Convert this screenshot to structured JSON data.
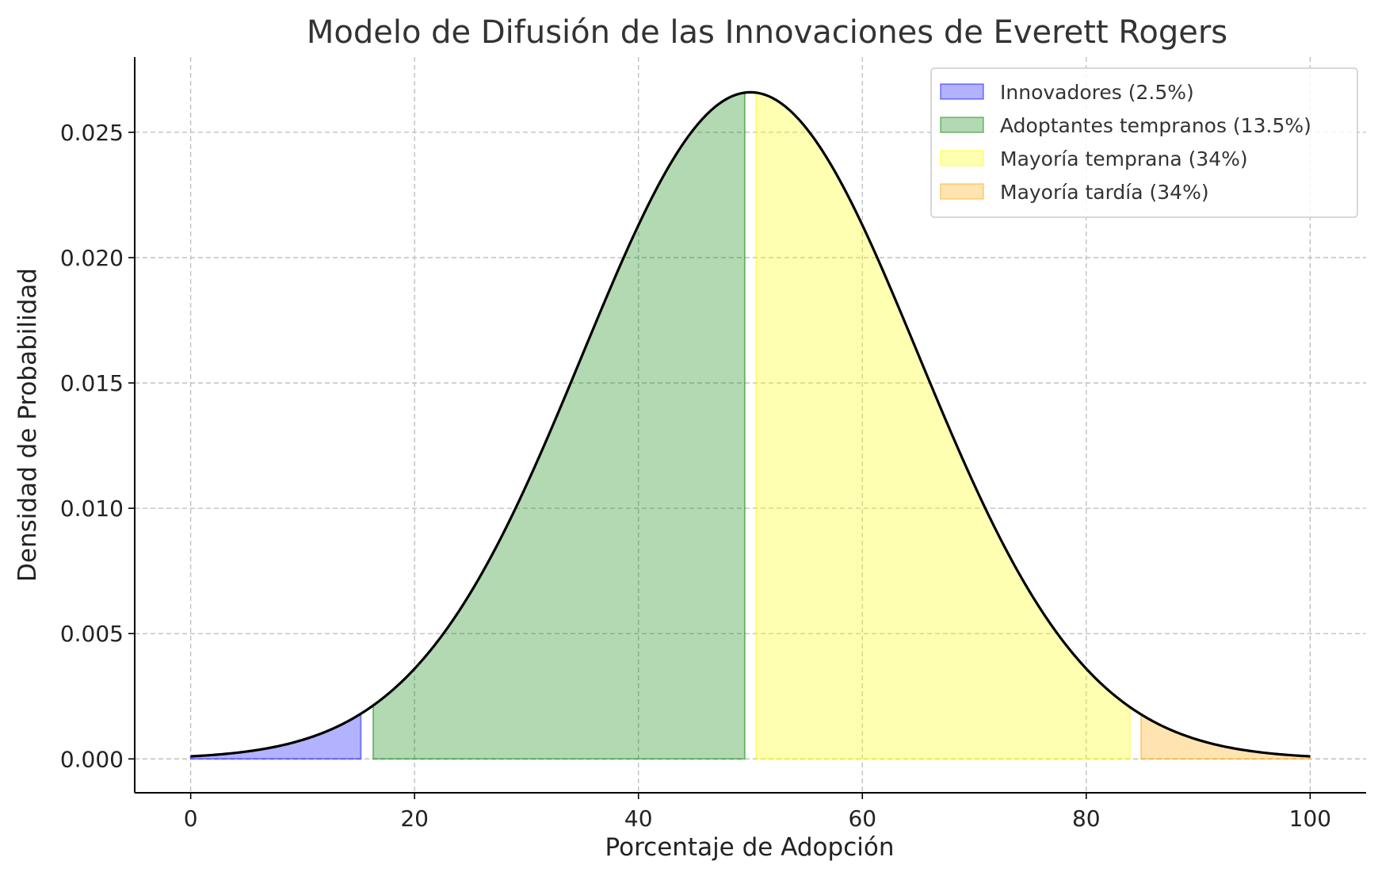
{
  "chart_data": {
    "type": "area",
    "title": "Modelo de Difusión de las Innovaciones de Everett Rogers",
    "xlabel": "Porcentaje de Adopción",
    "ylabel": "Densidad de Probabilidad",
    "xlim": [
      -5,
      105
    ],
    "ylim": [
      -0.00135,
      0.028
    ],
    "xticks": [
      0,
      20,
      40,
      60,
      80,
      100
    ],
    "xtick_labels": [
      "0",
      "20",
      "40",
      "60",
      "80",
      "100"
    ],
    "yticks": [
      0,
      0.005,
      0.01,
      0.015,
      0.02,
      0.025
    ],
    "ytick_labels": [
      "0.000",
      "0.005",
      "0.010",
      "0.015",
      "0.020",
      "0.025"
    ],
    "grid": true,
    "legend_position": "top-right",
    "curve": {
      "distribution": "normal",
      "mean": 50,
      "std": 15,
      "x_range": [
        0,
        100
      ],
      "color": "#000000"
    },
    "regions": [
      {
        "name": "Innovadores (2.5%)",
        "x_start": 0,
        "x_end": 15.2,
        "color": "#0000ff",
        "opacity": 0.3,
        "in_legend": true
      },
      {
        "name": "Adoptantes tempranos (13.5%)",
        "x_start": 16.3,
        "x_end": 49.5,
        "color": "#008000",
        "opacity": 0.3,
        "in_legend": true
      },
      {
        "name": "Mayoría temprana (34%)",
        "x_start": 50.5,
        "x_end": 83.9,
        "color": "#ffff00",
        "opacity": 0.3,
        "in_legend": true
      },
      {
        "name": "Mayoría tardía (34%)",
        "x_start": 84.9,
        "x_end": 100,
        "color": "#ffa500",
        "opacity": 0.3,
        "in_legend": true
      }
    ]
  }
}
